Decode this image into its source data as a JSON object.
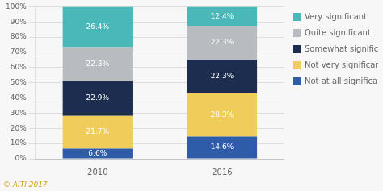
{
  "chart_data": {
    "type": "bar",
    "stacked": true,
    "data_labels": true,
    "grid": "y",
    "legend": "right",
    "categories": [
      "2010",
      "2016"
    ],
    "series": [
      {
        "name": "Not at all significant",
        "color": "#2e5ca8",
        "values": [
          6.6,
          14.6
        ],
        "value_labels": [
          "6.6%",
          "14.6%"
        ]
      },
      {
        "name": "Not very significant",
        "color": "#f0cc5a",
        "values": [
          21.7,
          28.3
        ],
        "value_labels": [
          "21.7%",
          "28.3%"
        ]
      },
      {
        "name": "Somewhat significant",
        "color": "#1c2d4f",
        "values": [
          22.9,
          22.3
        ],
        "value_labels": [
          "22.9%",
          "22.3%"
        ]
      },
      {
        "name": "Quite significant",
        "color": "#b8bcc0",
        "values": [
          22.3,
          22.3
        ],
        "value_labels": [
          "22.3%",
          "22.3%"
        ]
      },
      {
        "name": "Very significant",
        "color": "#4ab8b8",
        "values": [
          26.4,
          12.4
        ],
        "value_labels": [
          "26.4%",
          "12.4%"
        ]
      }
    ],
    "ylim": [
      0,
      100
    ],
    "yticks": [
      {
        "value": 0,
        "label": "0%"
      },
      {
        "value": 10,
        "label": "10%"
      },
      {
        "value": 20,
        "label": "20%"
      },
      {
        "value": 30,
        "label": "30%"
      },
      {
        "value": 40,
        "label": "40%"
      },
      {
        "value": 50,
        "label": "50%"
      },
      {
        "value": 60,
        "label": "60%"
      },
      {
        "value": 70,
        "label": "70%"
      },
      {
        "value": 80,
        "label": "80%"
      },
      {
        "value": 90,
        "label": "90%"
      },
      {
        "value": 100,
        "label": "100%"
      }
    ],
    "annotations": [
      {
        "text": "© AITI 2017",
        "color": "#d4a017"
      }
    ]
  }
}
